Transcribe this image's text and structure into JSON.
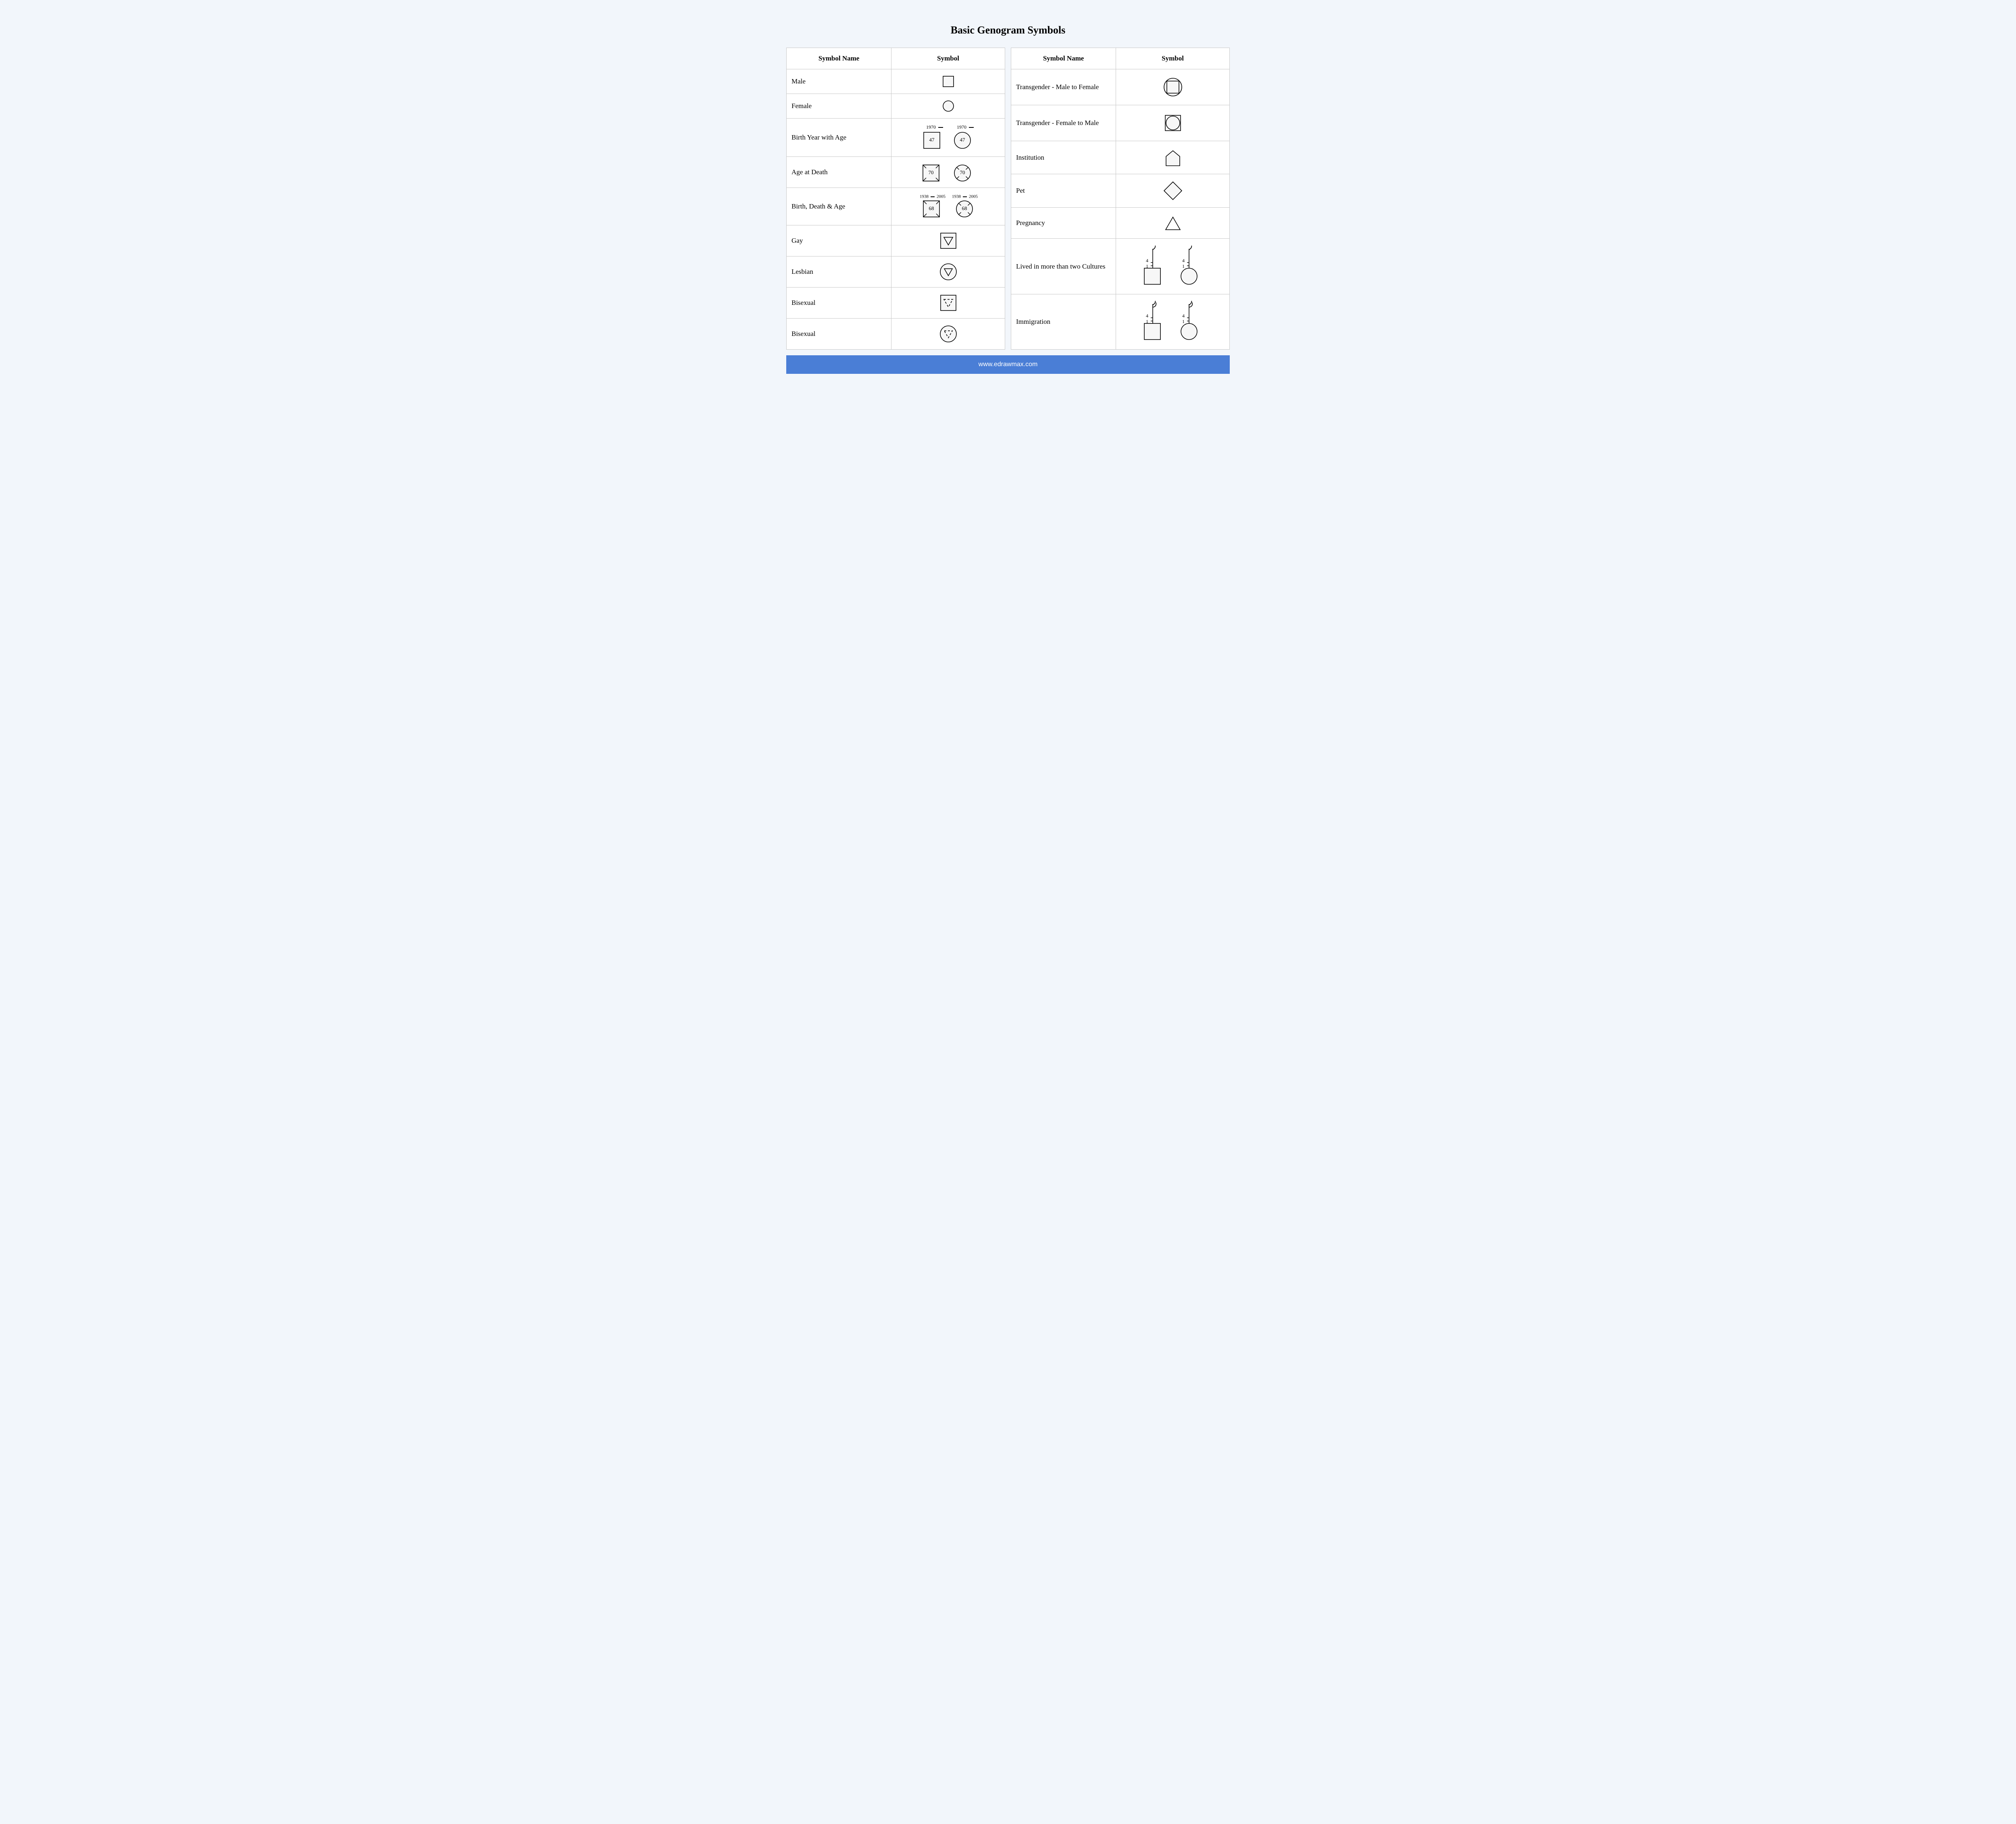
{
  "title": "Basic Genogram Symbols",
  "footer": "www.edrawmax.com",
  "colors": {
    "page_bg": "#f2f6fb",
    "table_bg": "#ffffff",
    "border": "#c8c8c8",
    "stroke": "#000000",
    "shape_fill": "#f7f7f7",
    "footer_bg": "#4a7ed6",
    "footer_text": "#ffffff",
    "text": "#000000"
  },
  "headers": {
    "col1": "Symbol Name",
    "col2": "Symbol"
  },
  "left_rows": [
    {
      "name": "Male",
      "symbol": "male"
    },
    {
      "name": "Female",
      "symbol": "female"
    },
    {
      "name": "Birth Year with Age",
      "symbol": "birth_age",
      "year": "1970",
      "age": "47"
    },
    {
      "name": "Age at Death",
      "symbol": "age_death",
      "age": "70"
    },
    {
      "name": "Birth, Death & Age",
      "symbol": "birth_death_age",
      "birth": "1938",
      "death": "2005",
      "age": "68"
    },
    {
      "name": "Gay",
      "symbol": "gay"
    },
    {
      "name": "Lesbian",
      "symbol": "lesbian"
    },
    {
      "name": "Bisexual",
      "symbol": "bisexual_sq"
    },
    {
      "name": "Bisexual",
      "symbol": "bisexual_ci"
    }
  ],
  "right_rows": [
    {
      "name": "Transgender - Male to Female",
      "symbol": "trans_mtf"
    },
    {
      "name": "Transgender - Female to Male",
      "symbol": "trans_ftm"
    },
    {
      "name": "Institution",
      "symbol": "institution"
    },
    {
      "name": "Pet",
      "symbol": "pet"
    },
    {
      "name": "Pregnancy",
      "symbol": "pregnancy"
    },
    {
      "name": "Lived in more than two Cultures",
      "symbol": "cultures",
      "num": "4"
    },
    {
      "name": "Immigration",
      "symbol": "immigration",
      "num": "4"
    }
  ]
}
